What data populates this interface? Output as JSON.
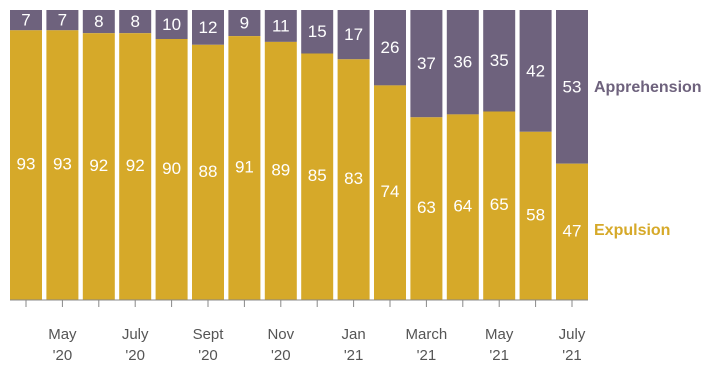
{
  "chart_data": {
    "type": "bar",
    "stacked": true,
    "percent_stacked": true,
    "categories": [
      "",
      "May '20",
      "",
      "July '20",
      "",
      "Sept '20",
      "",
      "Nov '20",
      "",
      "Jan '21",
      "",
      "March '21",
      "",
      "May '21",
      "",
      "July '21"
    ],
    "tick_labels": [
      {
        "index": 1,
        "month": "May",
        "year": "'20"
      },
      {
        "index": 3,
        "month": "July",
        "year": "'20"
      },
      {
        "index": 5,
        "month": "Sept",
        "year": "'20"
      },
      {
        "index": 7,
        "month": "Nov",
        "year": "'20"
      },
      {
        "index": 9,
        "month": "Jan",
        "year": "'21"
      },
      {
        "index": 11,
        "month": "March",
        "year": "'21"
      },
      {
        "index": 13,
        "month": "May",
        "year": "'21"
      },
      {
        "index": 15,
        "month": "July",
        "year": "'21"
      }
    ],
    "series": [
      {
        "name": "Expulsion",
        "color": "#d6a929",
        "values": [
          93,
          93,
          92,
          92,
          90,
          88,
          91,
          89,
          85,
          83,
          74,
          63,
          64,
          65,
          58,
          47
        ]
      },
      {
        "name": "Apprehension",
        "color": "#6e627d",
        "values": [
          7,
          7,
          8,
          8,
          10,
          12,
          9,
          11,
          15,
          17,
          26,
          37,
          36,
          35,
          42,
          53
        ]
      }
    ],
    "ylim": [
      0,
      100
    ],
    "grid": false,
    "legend": "right, inline labels at last bar"
  }
}
